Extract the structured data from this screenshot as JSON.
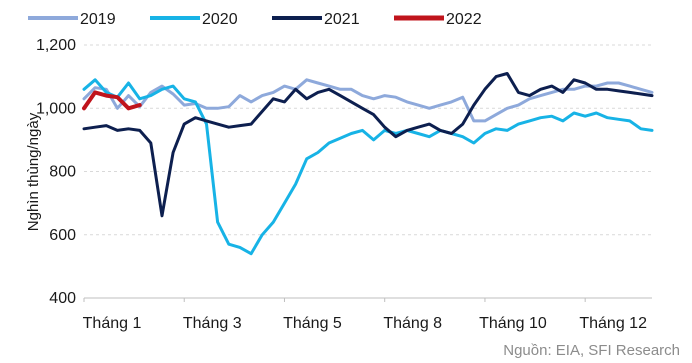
{
  "chart_data": {
    "type": "line",
    "title": "",
    "ylabel": "Nghìn thùng/ngày",
    "xlabel": "",
    "ylim": [
      400,
      1200
    ],
    "yticks": [
      400,
      600,
      800,
      1000,
      1200
    ],
    "ytick_labels": [
      "400",
      "600",
      "800",
      "1,000",
      "1,200"
    ],
    "xlim": [
      0,
      51
    ],
    "xticks": [
      {
        "x": 0,
        "label": "Tháng 1"
      },
      {
        "x": 9,
        "label": "Tháng 3"
      },
      {
        "x": 18,
        "label": "Tháng 5"
      },
      {
        "x": 27,
        "label": "Tháng 8"
      },
      {
        "x": 36,
        "label": "Tháng 10"
      },
      {
        "x": 45,
        "label": "Tháng 12"
      }
    ],
    "grid": true,
    "legend_position": "top",
    "series": [
      {
        "name": "2019",
        "color": "#8ea9db",
        "values": [
          1030,
          1065,
          1060,
          1000,
          1040,
          1005,
          1050,
          1070,
          1045,
          1010,
          1015,
          1000,
          1000,
          1005,
          1040,
          1020,
          1040,
          1050,
          1070,
          1060,
          1090,
          1080,
          1070,
          1060,
          1060,
          1040,
          1030,
          1040,
          1035,
          1020,
          1010,
          1000,
          1010,
          1020,
          1035,
          960,
          960,
          980,
          1000,
          1010,
          1030,
          1040,
          1050,
          1060,
          1060,
          1070,
          1070,
          1080,
          1080,
          1070,
          1060,
          1050
        ]
      },
      {
        "name": "2020",
        "color": "#17b3e6",
        "values": [
          1060,
          1090,
          1050,
          1035,
          1080,
          1030,
          1040,
          1060,
          1070,
          1030,
          1020,
          950,
          640,
          570,
          560,
          540,
          600,
          640,
          700,
          760,
          840,
          860,
          890,
          905,
          920,
          930,
          900,
          930,
          920,
          930,
          920,
          910,
          930,
          920,
          910,
          890,
          920,
          935,
          930,
          950,
          960,
          970,
          975,
          960,
          985,
          975,
          985,
          970,
          965,
          960,
          935,
          930
        ]
      },
      {
        "name": "2021",
        "color": "#0d1f4f",
        "values": [
          935,
          940,
          945,
          930,
          935,
          930,
          890,
          660,
          860,
          950,
          970,
          960,
          950,
          940,
          945,
          950,
          990,
          1030,
          1020,
          1060,
          1030,
          1050,
          1060,
          1040,
          1020,
          1000,
          980,
          940,
          910,
          930,
          940,
          950,
          930,
          920,
          950,
          1010,
          1060,
          1100,
          1110,
          1050,
          1040,
          1060,
          1070,
          1050,
          1090,
          1080,
          1060,
          1060,
          1055,
          1050,
          1045,
          1040
        ]
      },
      {
        "name": "2022",
        "color": "#c0141c",
        "values": [
          1000,
          1050,
          1040,
          1035,
          1000,
          1010
        ]
      }
    ]
  },
  "source_note": "Nguồn: EIA, SFI Research"
}
